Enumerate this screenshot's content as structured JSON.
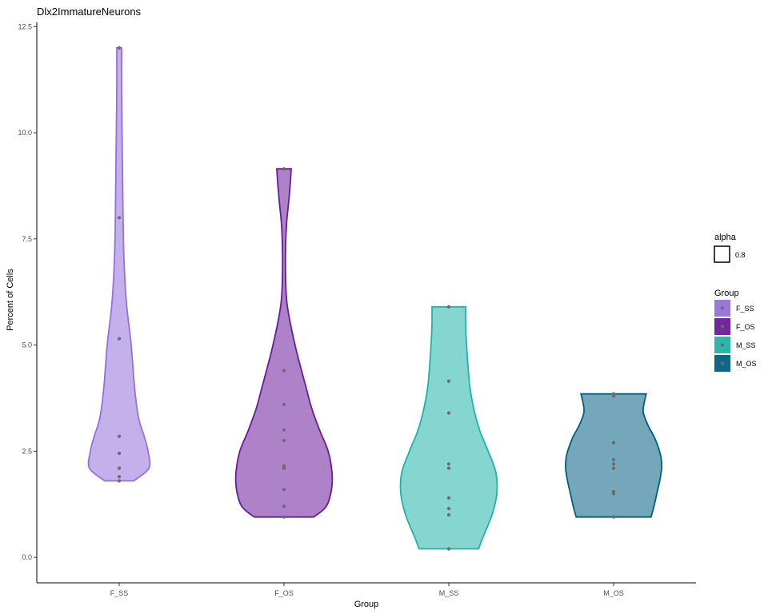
{
  "chart_data": {
    "type": "violin",
    "title": "Dlx2ImmatureNeurons",
    "xlabel": "Group",
    "ylabel": "Percent of Cells",
    "categories": [
      "F_SS",
      "F_OS",
      "M_SS",
      "M_OS"
    ],
    "ylim": [
      -0.6,
      12.6
    ],
    "yticks": [
      0.0,
      2.5,
      5.0,
      7.5,
      10.0,
      12.5
    ],
    "ytick_labels": [
      "0.0",
      "2.5",
      "5.0",
      "7.5",
      "10.0",
      "12.5"
    ],
    "grid": false,
    "legend_placement": "right",
    "series": [
      {
        "name": "F_SS",
        "fill": "#9370DB",
        "stroke": "#9370DB",
        "points": [
          12.0,
          8.0,
          5.15,
          2.85,
          2.45,
          2.1,
          1.9,
          1.8
        ],
        "violin_profile": [
          [
            1.8,
            0.3
          ],
          [
            2.1,
            0.62
          ],
          [
            2.5,
            0.6
          ],
          [
            2.85,
            0.52
          ],
          [
            3.3,
            0.4
          ],
          [
            4.0,
            0.32
          ],
          [
            5.0,
            0.25
          ],
          [
            6.0,
            0.15
          ],
          [
            7.0,
            0.1
          ],
          [
            8.0,
            0.08
          ],
          [
            9.0,
            0.07
          ],
          [
            10.0,
            0.06
          ],
          [
            11.0,
            0.05
          ],
          [
            11.8,
            0.05
          ],
          [
            12.0,
            0.05
          ]
        ]
      },
      {
        "name": "F_OS",
        "fill": "#6A1B9A",
        "stroke": "#6A1B9A",
        "points": [
          9.15,
          4.4,
          3.6,
          3.0,
          2.75,
          2.15,
          2.1,
          1.6,
          1.2,
          0.95
        ],
        "violin_profile": [
          [
            0.95,
            0.62
          ],
          [
            1.2,
            0.88
          ],
          [
            1.6,
            0.99
          ],
          [
            2.0,
            1.0
          ],
          [
            2.5,
            0.92
          ],
          [
            3.0,
            0.74
          ],
          [
            3.5,
            0.58
          ],
          [
            4.0,
            0.46
          ],
          [
            5.0,
            0.23
          ],
          [
            6.0,
            0.06
          ],
          [
            7.0,
            0.03
          ],
          [
            7.8,
            0.05
          ],
          [
            8.4,
            0.1
          ],
          [
            8.8,
            0.13
          ],
          [
            9.15,
            0.15
          ]
        ]
      },
      {
        "name": "M_SS",
        "fill": "#20B2AA",
        "stroke": "#20B2AA",
        "points": [
          5.9,
          4.15,
          3.4,
          2.2,
          2.1,
          1.4,
          1.15,
          1.0,
          0.2
        ],
        "violin_profile": [
          [
            0.2,
            0.62
          ],
          [
            0.5,
            0.72
          ],
          [
            1.0,
            0.9
          ],
          [
            1.5,
            1.0
          ],
          [
            2.0,
            0.98
          ],
          [
            2.5,
            0.82
          ],
          [
            3.0,
            0.64
          ],
          [
            3.5,
            0.52
          ],
          [
            4.0,
            0.44
          ],
          [
            4.5,
            0.4
          ],
          [
            5.0,
            0.37
          ],
          [
            5.5,
            0.35
          ],
          [
            5.9,
            0.35
          ]
        ]
      },
      {
        "name": "M_OS",
        "fill": "#005F80",
        "stroke": "#005F80",
        "points": [
          3.85,
          3.8,
          2.7,
          2.3,
          2.2,
          2.1,
          1.55,
          1.5,
          0.95
        ],
        "violin_profile": [
          [
            0.95,
            0.78
          ],
          [
            1.2,
            0.84
          ],
          [
            1.5,
            0.9
          ],
          [
            1.8,
            0.96
          ],
          [
            2.1,
            1.0
          ],
          [
            2.4,
            0.98
          ],
          [
            2.8,
            0.86
          ],
          [
            3.1,
            0.72
          ],
          [
            3.4,
            0.62
          ],
          [
            3.6,
            0.63
          ],
          [
            3.85,
            0.68
          ]
        ]
      }
    ],
    "legends": [
      {
        "title": "alpha",
        "items": [
          "0.8"
        ]
      },
      {
        "title": "Group",
        "items": [
          "F_SS",
          "F_OS",
          "M_SS",
          "M_OS"
        ]
      }
    ]
  },
  "colors": {
    "point": "#6b6b6b",
    "fill_opacity": 0.55
  }
}
